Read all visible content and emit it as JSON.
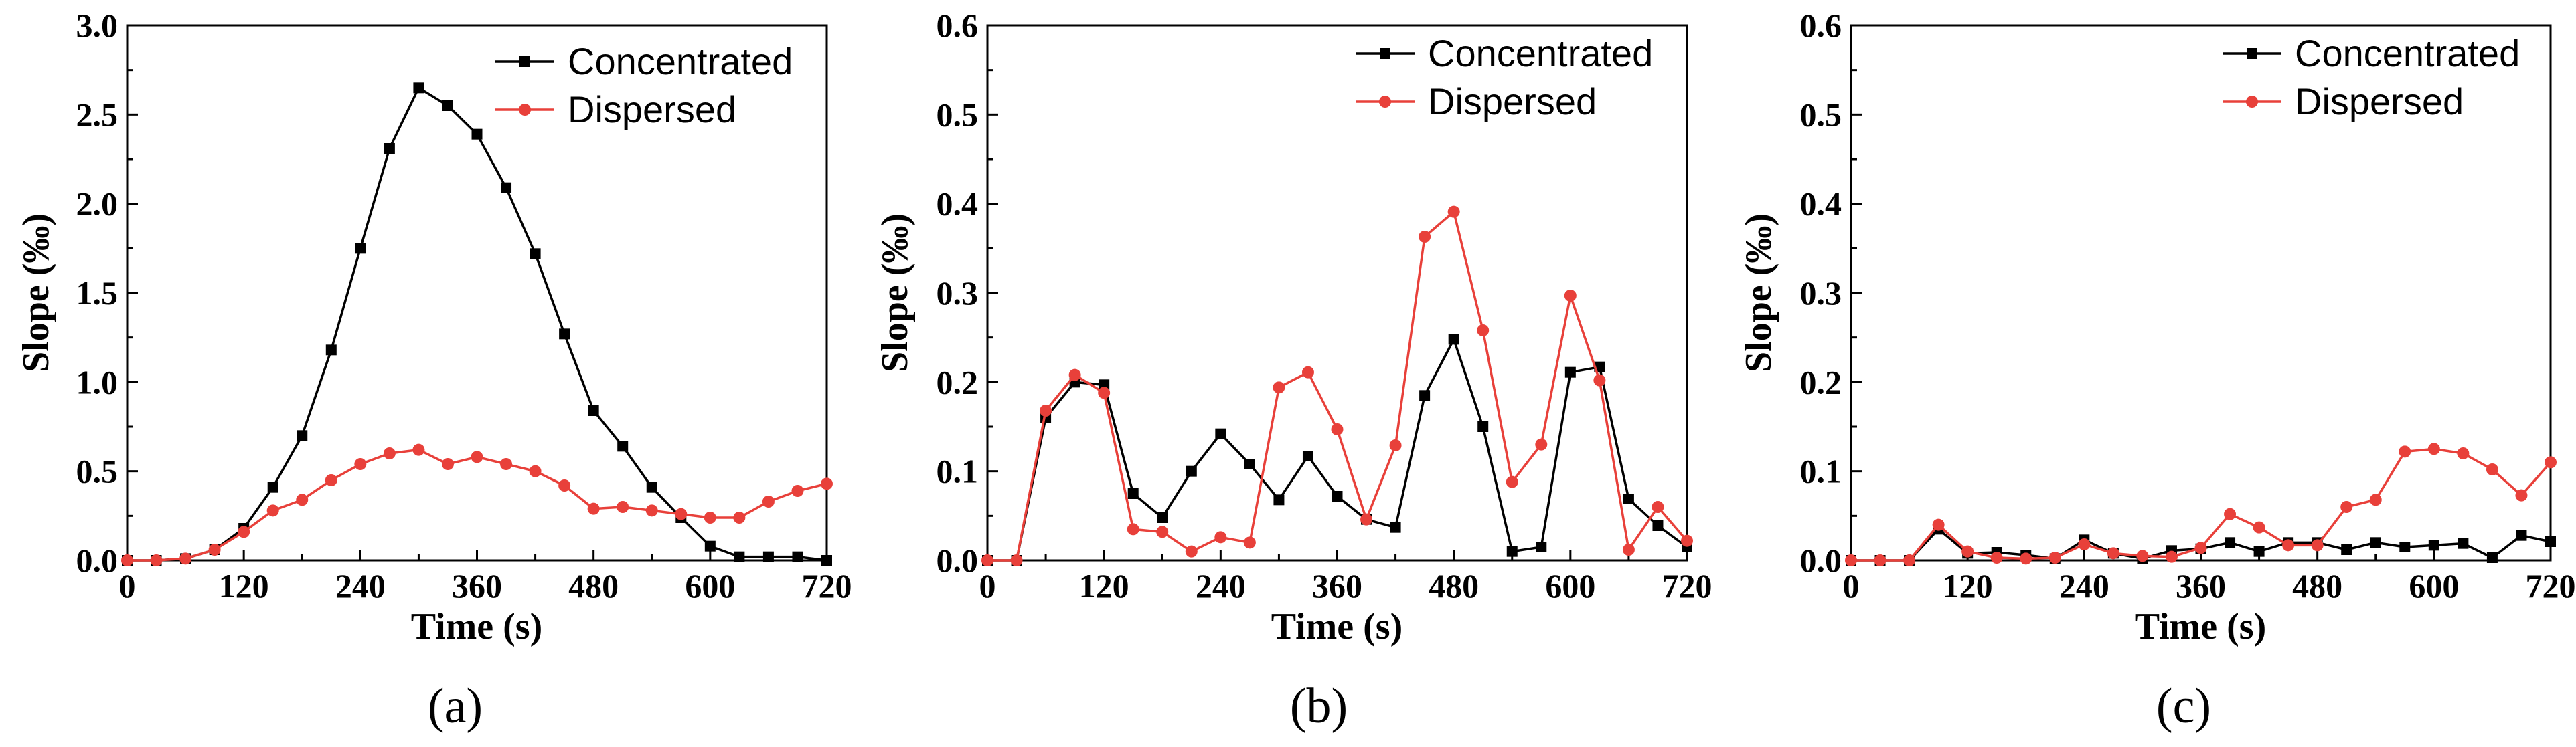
{
  "chart_data": [
    {
      "type": "line",
      "panel_label": "(a)",
      "xlabel": "Time (s)",
      "ylabel": "Slope (‰)",
      "xlim": [
        0,
        720
      ],
      "ylim": [
        0,
        3.0
      ],
      "xticks": [
        0,
        120,
        240,
        360,
        480,
        600,
        720
      ],
      "xtick_labels": [
        "0",
        "120",
        "240",
        "360",
        "480",
        "600",
        "720"
      ],
      "yticks": [
        0,
        0.5,
        1.0,
        1.5,
        2.0,
        2.5,
        3.0
      ],
      "ytick_labels": [
        "0.0",
        "0.5",
        "1.0",
        "1.5",
        "2.0",
        "2.5",
        "3.0"
      ],
      "legend_position": "top-right",
      "x": [
        0,
        30,
        60,
        90,
        120,
        150,
        180,
        210,
        240,
        270,
        300,
        330,
        360,
        390,
        420,
        450,
        480,
        510,
        540,
        570,
        600,
        630,
        660,
        690,
        720
      ],
      "series": [
        {
          "name": "Concentrated",
          "color": "#000000",
          "marker": "square",
          "values": [
            0,
            0,
            0.01,
            0.06,
            0.18,
            0.41,
            0.7,
            1.18,
            1.75,
            2.31,
            2.65,
            2.55,
            2.39,
            2.09,
            1.72,
            1.27,
            0.84,
            0.64,
            0.41,
            0.24,
            0.08,
            0.02,
            0.02,
            0.02,
            0.0
          ]
        },
        {
          "name": "Dispersed",
          "color": "#e8403a",
          "marker": "circle",
          "values": [
            0,
            0,
            0.01,
            0.06,
            0.16,
            0.28,
            0.34,
            0.45,
            0.54,
            0.6,
            0.62,
            0.54,
            0.58,
            0.54,
            0.5,
            0.42,
            0.29,
            0.3,
            0.28,
            0.26,
            0.24,
            0.24,
            0.33,
            0.39,
            0.43
          ]
        }
      ]
    },
    {
      "type": "line",
      "panel_label": "(b)",
      "xlabel": "Time (s)",
      "ylabel": "Slope (‰)",
      "xlim": [
        0,
        720
      ],
      "ylim": [
        0,
        0.6
      ],
      "xticks": [
        0,
        120,
        240,
        360,
        480,
        600,
        720
      ],
      "xtick_labels": [
        "0",
        "120",
        "240",
        "360",
        "480",
        "600",
        "720"
      ],
      "yticks": [
        0,
        0.1,
        0.2,
        0.3,
        0.4,
        0.5,
        0.6
      ],
      "ytick_labels": [
        "0.0",
        "0.1",
        "0.2",
        "0.3",
        "0.4",
        "0.5",
        "0.6"
      ],
      "legend_position": "top-right",
      "x": [
        0,
        30,
        60,
        90,
        120,
        150,
        180,
        210,
        240,
        270,
        300,
        330,
        360,
        390,
        420,
        450,
        480,
        510,
        540,
        570,
        600,
        630,
        660,
        690,
        720
      ],
      "series": [
        {
          "name": "Concentrated",
          "color": "#000000",
          "marker": "square",
          "values": [
            0,
            0,
            0.16,
            0.2,
            0.197,
            0.075,
            0.048,
            0.1,
            0.142,
            0.108,
            0.068,
            0.117,
            0.072,
            0.046,
            0.037,
            0.185,
            0.248,
            0.15,
            0.01,
            0.015,
            0.211,
            0.217,
            0.069,
            0.039,
            0.015
          ]
        },
        {
          "name": "Dispersed",
          "color": "#e8403a",
          "marker": "circle",
          "values": [
            0,
            0,
            0.168,
            0.208,
            0.188,
            0.035,
            0.032,
            0.01,
            0.026,
            0.02,
            0.194,
            0.211,
            0.147,
            0.046,
            0.129,
            0.363,
            0.391,
            0.258,
            0.088,
            0.13,
            0.297,
            0.202,
            0.012,
            0.06,
            0.022
          ]
        }
      ]
    },
    {
      "type": "line",
      "panel_label": "(c)",
      "xlabel": "Time (s)",
      "ylabel": "Slope (‰)",
      "xlim": [
        0,
        720
      ],
      "ylim": [
        0,
        0.6
      ],
      "xticks": [
        0,
        120,
        240,
        360,
        480,
        600,
        720
      ],
      "xtick_labels": [
        "0",
        "120",
        "240",
        "360",
        "480",
        "600",
        "720"
      ],
      "yticks": [
        0,
        0.1,
        0.2,
        0.3,
        0.4,
        0.5,
        0.6
      ],
      "ytick_labels": [
        "0.0",
        "0.1",
        "0.2",
        "0.3",
        "0.4",
        "0.5",
        "0.6"
      ],
      "legend_position": "top-right",
      "x": [
        0,
        30,
        60,
        90,
        120,
        150,
        180,
        210,
        240,
        270,
        300,
        330,
        360,
        390,
        420,
        450,
        480,
        510,
        540,
        570,
        600,
        630,
        660,
        690,
        720
      ],
      "series": [
        {
          "name": "Concentrated",
          "color": "#000000",
          "marker": "square",
          "values": [
            0,
            0,
            0,
            0.035,
            0.008,
            0.009,
            0.006,
            0.002,
            0.023,
            0.008,
            0.002,
            0.011,
            0.013,
            0.02,
            0.01,
            0.02,
            0.02,
            0.012,
            0.02,
            0.015,
            0.017,
            0.019,
            0.003,
            0.028,
            0.021
          ]
        },
        {
          "name": "Dispersed",
          "color": "#e8403a",
          "marker": "circle",
          "values": [
            0,
            0,
            0,
            0.04,
            0.01,
            0.003,
            0.002,
            0.003,
            0.018,
            0.008,
            0.005,
            0.004,
            0.014,
            0.052,
            0.037,
            0.017,
            0.017,
            0.06,
            0.068,
            0.122,
            0.125,
            0.12,
            0.102,
            0.073,
            0.11
          ]
        }
      ]
    }
  ]
}
